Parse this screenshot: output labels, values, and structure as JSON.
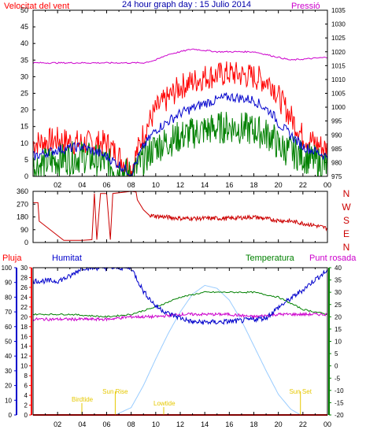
{
  "title": "24 hour graph day : 15 Julio 2014",
  "labels": {
    "wind": "Velocitat del vent",
    "pressure": "Pressió",
    "rain": "Pluja",
    "humidity": "Humitat",
    "temperature": "Temperatura",
    "dewpoint": "Punt rosada",
    "dir_letters": [
      "N",
      "W",
      "S",
      "E",
      "N"
    ],
    "sun_rise": "Sun Rise",
    "sun_set": "Sun Set",
    "birdtide": "Birdtide",
    "lowtide": "Lowtide"
  },
  "colors": {
    "wind": "#ff0000",
    "gust": "#ff0000",
    "avg": "#0000cc",
    "low": "#008000",
    "pressure": "#cc00cc",
    "direction": "#cc0000",
    "humidity": "#0000cc",
    "temperature": "#008000",
    "dewpoint": "#cc00cc",
    "solar": "#99ccff",
    "tide": "#e6c800",
    "rain": "#ff0000",
    "frame": "#000000"
  },
  "chart_data": [
    {
      "type": "line",
      "name": "wind-and-pressure",
      "x_ticks": [
        "02",
        "04",
        "06",
        "08",
        "10",
        "12",
        "14",
        "16",
        "18",
        "20",
        "22",
        "00"
      ],
      "x": [
        0,
        2,
        4,
        6,
        8,
        9,
        10,
        12,
        14,
        16,
        18,
        19.5,
        20,
        22,
        24
      ],
      "series": [
        {
          "key": "gust",
          "values": [
            10,
            11,
            10,
            10,
            2,
            13,
            20,
            27,
            30,
            31,
            30,
            28,
            24,
            12,
            8
          ]
        },
        {
          "key": "avg",
          "values": [
            6,
            8,
            9,
            6,
            1,
            9,
            14,
            19,
            22,
            24,
            23,
            19,
            16,
            9,
            6
          ]
        },
        {
          "key": "low",
          "values": [
            3,
            5,
            6,
            4,
            0,
            5,
            9,
            12,
            14,
            15,
            14,
            12,
            9,
            6,
            3
          ]
        }
      ],
      "ylim_left": [
        0,
        50
      ],
      "yticks_left": [
        0,
        5,
        10,
        15,
        20,
        25,
        30,
        35,
        40,
        45,
        50
      ],
      "pressure": {
        "x": [
          0,
          7,
          9,
          10,
          11,
          13,
          15,
          18,
          19,
          20,
          21,
          24
        ],
        "values": [
          1016,
          1016,
          1016,
          1017,
          1019,
          1021,
          1020,
          1020,
          1019,
          1018,
          1017,
          1018
        ]
      },
      "ylim_right": [
        975,
        1035
      ],
      "yticks_right": [
        975,
        980,
        985,
        990,
        995,
        1000,
        1005,
        1010,
        1015,
        1020,
        1025,
        1030,
        1035
      ]
    },
    {
      "type": "line",
      "name": "wind-direction",
      "x": [
        0,
        0.4,
        0.5,
        2.5,
        4,
        4.8,
        5,
        5.2,
        5.5,
        6,
        6.3,
        6.5,
        8,
        8.4,
        8.5,
        9,
        9.5,
        12,
        16,
        18,
        20,
        21,
        23,
        24
      ],
      "values": [
        280,
        280,
        150,
        15,
        15,
        20,
        345,
        20,
        345,
        345,
        20,
        345,
        360,
        355,
        300,
        230,
        190,
        170,
        170,
        180,
        155,
        150,
        120,
        100
      ],
      "ylim": [
        0,
        360
      ],
      "yticks": [
        0,
        90,
        180,
        270,
        360
      ]
    },
    {
      "type": "line",
      "name": "humidity-temperature-dewpoint",
      "humidity": {
        "x": [
          0,
          2,
          3,
          4,
          7,
          8,
          9,
          10,
          11,
          13,
          15,
          17,
          19,
          20,
          21,
          22,
          23,
          24
        ],
        "values": [
          91,
          91,
          94,
          100,
          100,
          100,
          84,
          74,
          69,
          63,
          63,
          64,
          66,
          73,
          79,
          85,
          92,
          98
        ]
      },
      "temperature": {
        "x": [
          0,
          3,
          6,
          8,
          10,
          12,
          14,
          16,
          18,
          20,
          22,
          24
        ],
        "values": [
          21,
          21,
          20,
          21,
          24,
          28,
          30,
          30,
          30,
          28,
          23,
          21
        ]
      },
      "dewpoint": {
        "x": [
          0,
          3,
          6,
          8,
          10,
          12,
          14,
          16,
          18,
          20,
          22,
          24
        ],
        "values": [
          19,
          19,
          19,
          20,
          20,
          21,
          21,
          21,
          20,
          21,
          21,
          21
        ]
      },
      "solar": {
        "x": [
          6.7,
          8,
          9,
          10,
          11,
          12,
          13,
          14,
          15,
          16,
          17,
          18,
          19,
          20,
          21,
          21.8
        ],
        "values": [
          0,
          5,
          20,
          38,
          55,
          70,
          82,
          88,
          86,
          78,
          64,
          47,
          30,
          14,
          4,
          0
        ]
      },
      "rain": {
        "x": [
          0,
          24
        ],
        "values": [
          0,
          0
        ]
      },
      "ylim_humidity": [
        0,
        100
      ],
      "yticks_humidity": [
        0,
        10,
        20,
        30,
        40,
        50,
        60,
        70,
        80,
        90,
        100
      ],
      "ylim_rain": [
        0,
        30
      ],
      "yticks_rain": [
        0,
        2,
        4,
        6,
        8,
        10,
        12,
        14,
        16,
        18,
        20,
        22,
        24,
        26,
        28,
        30
      ],
      "ylim_temperature": [
        -20,
        40
      ],
      "yticks_temperature": [
        -20,
        -15,
        -10,
        -5,
        0,
        5,
        10,
        15,
        20,
        25,
        30,
        35,
        40
      ],
      "sun_rise_hour": 6.7,
      "sun_set_hour": 21.8
    }
  ]
}
